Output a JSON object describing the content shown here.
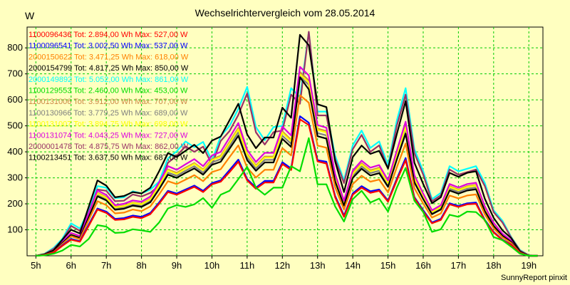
{
  "chart_data": {
    "type": "line",
    "title": "Wechselrichtervergleich vom 28.05.2014",
    "ylabel": "W",
    "xlabel": "",
    "ylim": [
      0,
      880
    ],
    "xlim": [
      4.75,
      19.4
    ],
    "yticks": [
      100,
      200,
      300,
      400,
      500,
      600,
      700,
      800
    ],
    "xticks": [
      {
        "x": 5,
        "label": "5h"
      },
      {
        "x": 6,
        "label": "6h"
      },
      {
        "x": 7,
        "label": "7h"
      },
      {
        "x": 8,
        "label": "8h"
      },
      {
        "x": 9,
        "label": "9h"
      },
      {
        "x": 10,
        "label": "10h"
      },
      {
        "x": 11,
        "label": "11h"
      },
      {
        "x": 12,
        "label": "12h"
      },
      {
        "x": 13,
        "label": "13h"
      },
      {
        "x": 14,
        "label": "14h"
      },
      {
        "x": 15,
        "label": "15h"
      },
      {
        "x": 16,
        "label": "16h"
      },
      {
        "x": 17,
        "label": "17h"
      },
      {
        "x": 18,
        "label": "18h"
      },
      {
        "x": 19,
        "label": "19h"
      }
    ],
    "grid": true,
    "legend_position": "top-left",
    "x": [
      5.0,
      5.25,
      5.5,
      5.75,
      6.0,
      6.25,
      6.5,
      6.75,
      7.0,
      7.25,
      7.5,
      7.75,
      8.0,
      8.25,
      8.5,
      8.75,
      9.0,
      9.25,
      9.5,
      9.75,
      10.0,
      10.25,
      10.5,
      10.75,
      11.0,
      11.25,
      11.5,
      11.75,
      12.0,
      12.25,
      12.5,
      12.75,
      13.0,
      13.25,
      13.5,
      13.75,
      14.0,
      14.25,
      14.5,
      14.75,
      15.0,
      15.25,
      15.5,
      15.75,
      16.0,
      16.25,
      16.5,
      16.75,
      17.0,
      17.25,
      17.5,
      17.75,
      18.0,
      18.25,
      18.5,
      18.75,
      19.0,
      19.25
    ],
    "series": [
      {
        "name": "1100096436",
        "label": "1100096436 Tot: 2.894,00 Wh Max: 527,00 W",
        "color": "#FF0000",
        "values": [
          0,
          3,
          12,
          38,
          62,
          54,
          115,
          178,
          165,
          138,
          140,
          150,
          145,
          160,
          200,
          245,
          235,
          250,
          265,
          245,
          275,
          285,
          322,
          362,
          290,
          258,
          282,
          282,
          353,
          330,
          525,
          503,
          363,
          355,
          225,
          150,
          235,
          262,
          242,
          250,
          208,
          290,
          368,
          222,
          170,
          125,
          138,
          198,
          188,
          198,
          200,
          135,
          90,
          60,
          42,
          10,
          0,
          0
        ]
      },
      {
        "name": "1100096541",
        "label": "1100096541 Tot: 3.002,50 Wh Max: 537,00 W",
        "color": "#0000FF",
        "values": [
          0,
          3,
          12,
          40,
          65,
          56,
          120,
          182,
          170,
          142,
          145,
          155,
          150,
          165,
          205,
          250,
          240,
          255,
          270,
          250,
          280,
          290,
          330,
          370,
          295,
          262,
          288,
          288,
          360,
          336,
          537,
          512,
          368,
          362,
          230,
          155,
          240,
          268,
          248,
          255,
          212,
          296,
          376,
          226,
          175,
          128,
          142,
          202,
          192,
          202,
          205,
          138,
          92,
          62,
          43,
          10,
          0,
          0
        ]
      },
      {
        "name": "2000150622",
        "label": "2000150622 Tot: 3.471,25 Wh Max: 618,00 W",
        "color": "#FF8000",
        "values": [
          0,
          4,
          14,
          45,
          75,
          64,
          138,
          210,
          195,
          163,
          166,
          178,
          172,
          190,
          236,
          287,
          276,
          293,
          310,
          287,
          322,
          333,
          380,
          425,
          339,
          301,
          331,
          331,
          414,
          386,
          618,
          589,
          424,
          416,
          264,
          178,
          276,
          308,
          285,
          293,
          244,
          340,
          432,
          260,
          201,
          147,
          163,
          232,
          221,
          232,
          236,
          159,
          106,
          71,
          49,
          12,
          0,
          0
        ]
      },
      {
        "name": "2000154799",
        "label": "2000154799 Tot: 4.817,25 Wh Max: 850,00 W",
        "color": "#000000",
        "values": [
          0,
          6,
          20,
          62,
          100,
          86,
          188,
          290,
          270,
          225,
          230,
          245,
          240,
          262,
          325,
          395,
          380,
          404,
          427,
          395,
          443,
          459,
          522,
          585,
          467,
          414,
          455,
          455,
          570,
          531,
          850,
          810,
          583,
          572,
          363,
          245,
          380,
          424,
          392,
          404,
          336,
          468,
          595,
          358,
          276,
          202,
          225,
          319,
          304,
          319,
          325,
          219,
          146,
          98,
          68,
          16,
          0,
          0
        ]
      },
      {
        "name": "2000149892",
        "label": "2000149892 Tot: 5.052,00 Wh Max: 861,00 W",
        "color": "#00FFFF",
        "values": [
          0,
          8,
          30,
          65,
          125,
          105,
          175,
          268,
          262,
          222,
          225,
          248,
          240,
          255,
          285,
          375,
          402,
          440,
          418,
          438,
          365,
          460,
          500,
          565,
          650,
          495,
          445,
          495,
          500,
          645,
          610,
          861,
          555,
          555,
          385,
          290,
          425,
          482,
          415,
          440,
          348,
          520,
          645,
          410,
          325,
          218,
          242,
          345,
          325,
          335,
          345,
          280,
          175,
          135,
          72,
          22,
          2,
          0
        ]
      },
      {
        "name": "1100129553",
        "label": "1100129553 Tot: 2.460,00 Wh Max: 453,00 W",
        "color": "#00DD00",
        "values": [
          0,
          2,
          8,
          20,
          42,
          36,
          65,
          118,
          112,
          88,
          90,
          102,
          98,
          92,
          128,
          182,
          195,
          188,
          198,
          222,
          185,
          235,
          250,
          295,
          342,
          262,
          235,
          262,
          262,
          345,
          325,
          453,
          275,
          275,
          190,
          132,
          218,
          250,
          205,
          220,
          170,
          262,
          338,
          212,
          168,
          92,
          102,
          158,
          150,
          170,
          168,
          138,
          72,
          60,
          35,
          8,
          0,
          0
        ]
      },
      {
        "name": "1100131006",
        "label": "1100131006 Tot: 3.912,00 Wh Max: 707,00 W",
        "color": "#CC8844",
        "values": [
          0,
          5,
          17,
          52,
          85,
          73,
          158,
          243,
          226,
          188,
          193,
          205,
          200,
          220,
          272,
          332,
          319,
          339,
          357,
          332,
          372,
          385,
          438,
          492,
          392,
          348,
          382,
          382,
          479,
          446,
          707,
          675,
          489,
          480,
          305,
          206,
          319,
          356,
          329,
          339,
          282,
          393,
          500,
          301,
          232,
          170,
          189,
          268,
          255,
          268,
          273,
          184,
          123,
          82,
          57,
          13,
          0,
          0
        ]
      },
      {
        "name": "1100130966",
        "label": "1100130966 Tot: 3.779,25 Wh Max: 689,00 W",
        "color": "#808080",
        "values": [
          0,
          5,
          17,
          50,
          82,
          70,
          152,
          235,
          218,
          182,
          186,
          198,
          193,
          212,
          263,
          320,
          308,
          327,
          345,
          320,
          359,
          372,
          423,
          475,
          378,
          336,
          369,
          369,
          462,
          431,
          689,
          658,
          472,
          463,
          294,
          198,
          308,
          344,
          318,
          327,
          272,
          380,
          483,
          290,
          224,
          164,
          182,
          258,
          246,
          258,
          263,
          177,
          118,
          79,
          55,
          13,
          0,
          0
        ]
      },
      {
        "name": "1100131007",
        "label": "1100131007 Tot: 3.894,75 Wh Max: 698,00 W",
        "color": "#FFFF00",
        "values": [
          0,
          5,
          17,
          51,
          84,
          72,
          156,
          240,
          223,
          186,
          191,
          203,
          198,
          217,
          269,
          329,
          315,
          335,
          354,
          329,
          368,
          381,
          433,
          487,
          388,
          344,
          378,
          378,
          474,
          441,
          698,
          667,
          484,
          475,
          302,
          203,
          315,
          352,
          325,
          335,
          279,
          389,
          495,
          298,
          230,
          168,
          187,
          265,
          252,
          265,
          270,
          182,
          122,
          81,
          56,
          13,
          0,
          0
        ]
      },
      {
        "name": "1100131074",
        "label": "1100131074 Tot: 4.043,25 Wh Max: 727,00 W",
        "color": "#DD00DD",
        "values": [
          0,
          5,
          18,
          54,
          88,
          76,
          164,
          252,
          234,
          195,
          200,
          213,
          208,
          228,
          283,
          345,
          331,
          352,
          372,
          345,
          386,
          400,
          455,
          511,
          407,
          361,
          396,
          396,
          497,
          463,
          727,
          694,
          503,
          493,
          314,
          212,
          328,
          366,
          339,
          349,
          290,
          404,
          516,
          310,
          239,
          175,
          195,
          276,
          263,
          276,
          281,
          190,
          127,
          85,
          59,
          14,
          0,
          0
        ]
      },
      {
        "name": "2000001478",
        "label": "2000001478 Tot: 4.875,75 Wh Max: 862,00 W",
        "color": "#993366",
        "values": [
          0,
          7,
          26,
          60,
          115,
          96,
          165,
          255,
          250,
          210,
          212,
          236,
          228,
          242,
          270,
          358,
          385,
          421,
          400,
          420,
          350,
          442,
          480,
          542,
          625,
          475,
          428,
          476,
          482,
          620,
          585,
          862,
          540,
          540,
          372,
          280,
          410,
          465,
          400,
          425,
          335,
          500,
          620,
          395,
          312,
          210,
          233,
          332,
          312,
          322,
          332,
          268,
          168,
          128,
          70,
          20,
          2,
          0
        ]
      },
      {
        "name": "1100213451",
        "label": "1100213451 Tot: 3.637,50 Wh Max: 687,00 W",
        "color": "#000000",
        "values": [
          0,
          5,
          16,
          49,
          80,
          69,
          148,
          229,
          213,
          177,
          181,
          193,
          188,
          206,
          256,
          312,
          300,
          319,
          336,
          312,
          350,
          362,
          412,
          462,
          368,
          327,
          359,
          359,
          450,
          419,
          687,
          640,
          460,
          451,
          286,
          193,
          300,
          335,
          309,
          318,
          265,
          370,
          470,
          282,
          218,
          160,
          178,
          251,
          239,
          251,
          256,
          172,
          115,
          77,
          53,
          12,
          0,
          0
        ]
      }
    ]
  },
  "credit": "SunnyReport pinxit"
}
